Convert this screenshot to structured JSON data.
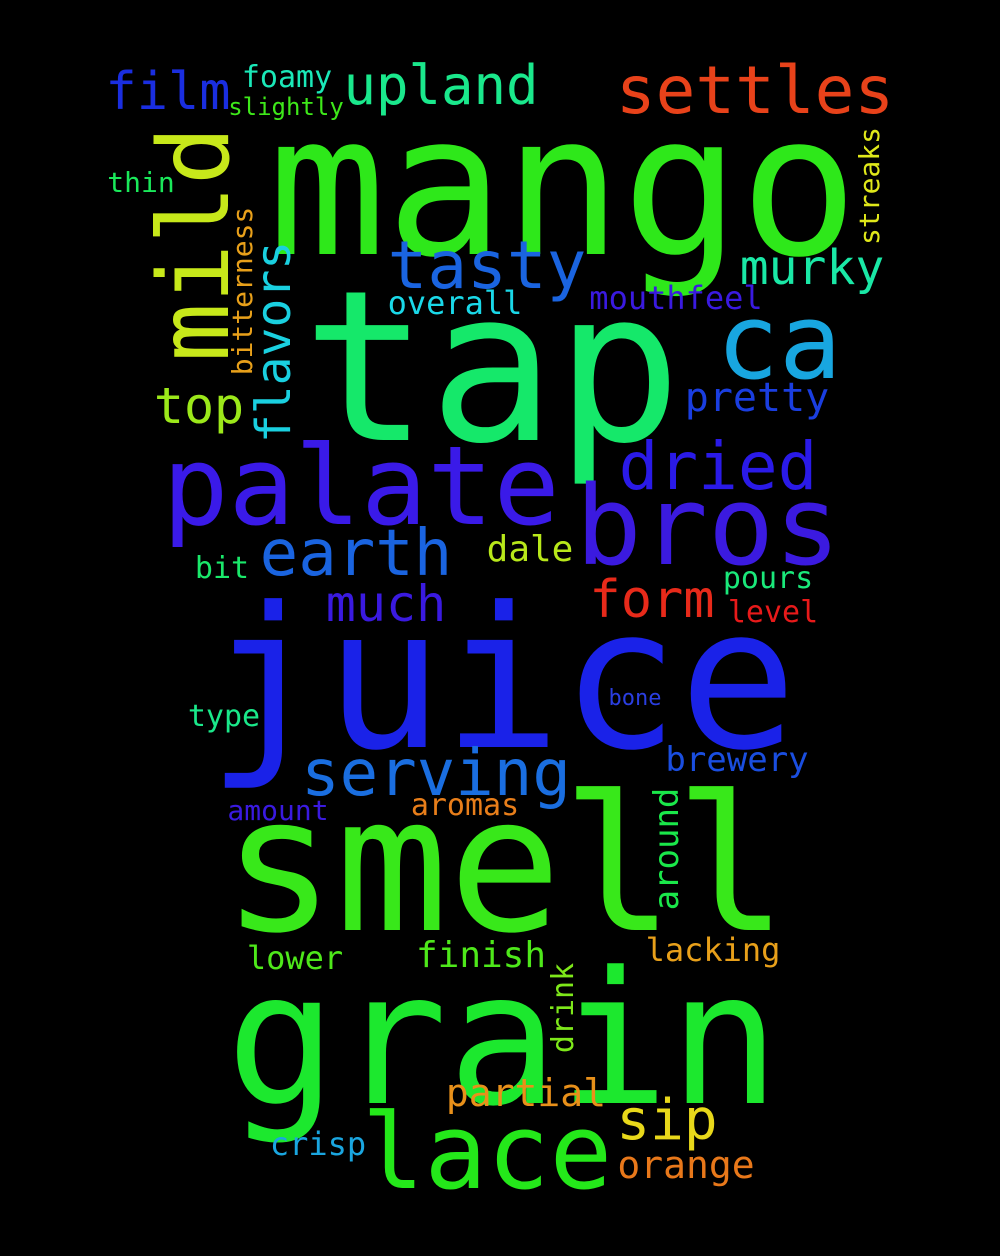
{
  "words": [
    {
      "text": "mango",
      "color": "#2ee81a"
    },
    {
      "text": "tap",
      "color": "#15e86a"
    },
    {
      "text": "juice",
      "color": "#1a22e8"
    },
    {
      "text": "smell",
      "color": "#38e81a"
    },
    {
      "text": "grain",
      "color": "#1ce82e"
    },
    {
      "text": "palate",
      "color": "#3a1ae8"
    },
    {
      "text": "bros",
      "color": "#3b1ae0"
    },
    {
      "text": "mild",
      "color": "#c7e81a"
    },
    {
      "text": "ca",
      "color": "#18a6e0"
    },
    {
      "text": "lace",
      "color": "#24e81a"
    },
    {
      "text": "settles",
      "color": "#e8421a"
    },
    {
      "text": "upland",
      "color": "#1ae88c"
    },
    {
      "text": "film",
      "color": "#1a2ee0"
    },
    {
      "text": "tasty",
      "color": "#1a64e0"
    },
    {
      "text": "murky",
      "color": "#1ae8a6"
    },
    {
      "text": "dried",
      "color": "#2a1ae8"
    },
    {
      "text": "earth",
      "color": "#1a64e0"
    },
    {
      "text": "serving",
      "color": "#1a6ee0"
    },
    {
      "text": "form",
      "color": "#e82a1a"
    },
    {
      "text": "much",
      "color": "#3a1ae0"
    },
    {
      "text": "flavors",
      "color": "#1ad0e0"
    },
    {
      "text": "top",
      "color": "#9ce81a"
    },
    {
      "text": "sip",
      "color": "#e8d81a"
    },
    {
      "text": "pretty",
      "color": "#1a3ee0"
    },
    {
      "text": "foamy",
      "color": "#1ae8b8"
    },
    {
      "text": "slightly",
      "color": "#3ee81a"
    },
    {
      "text": "thin",
      "color": "#1ae85a"
    },
    {
      "text": "bitterness",
      "color": "#e8a01a"
    },
    {
      "text": "overall",
      "color": "#1ad8e8"
    },
    {
      "text": "mouthfeel",
      "color": "#3a1ae0"
    },
    {
      "text": "streaks",
      "color": "#e0e81a"
    },
    {
      "text": "dale",
      "color": "#b8e81a"
    },
    {
      "text": "bit",
      "color": "#1ae86a"
    },
    {
      "text": "pours",
      "color": "#1ae87a"
    },
    {
      "text": "level",
      "color": "#e81a1a"
    },
    {
      "text": "bone",
      "color": "#2a3ee0"
    },
    {
      "text": "type",
      "color": "#1ae88a"
    },
    {
      "text": "brewery",
      "color": "#1a4ee0"
    },
    {
      "text": "amount",
      "color": "#3a1ae0"
    },
    {
      "text": "aromas",
      "color": "#e87e1a"
    },
    {
      "text": "around",
      "color": "#1ae84a"
    },
    {
      "text": "lower",
      "color": "#4ee81a"
    },
    {
      "text": "finish",
      "color": "#4ee81a"
    },
    {
      "text": "lacking",
      "color": "#e8a01a"
    },
    {
      "text": "drink",
      "color": "#7ee81a"
    },
    {
      "text": "partial",
      "color": "#e8901a"
    },
    {
      "text": "crisp",
      "color": "#1aa6e0"
    },
    {
      "text": "orange",
      "color": "#e8781a"
    }
  ]
}
